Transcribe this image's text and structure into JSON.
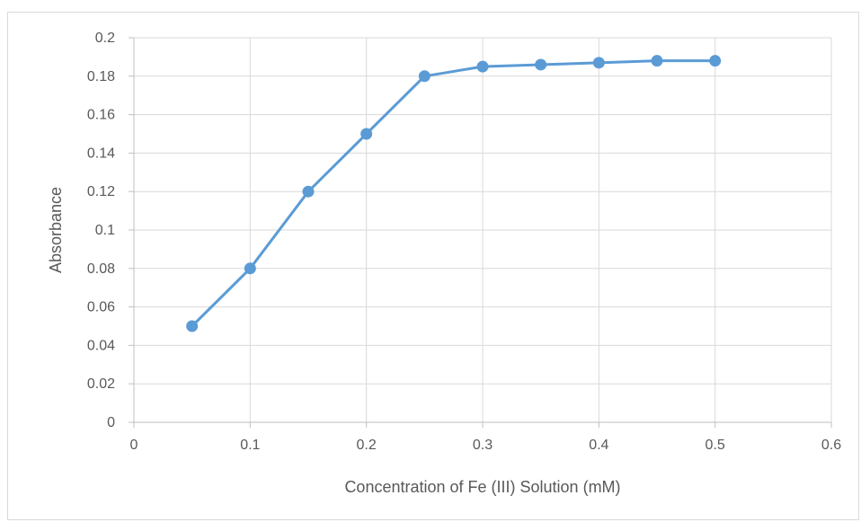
{
  "chart_data": {
    "type": "line",
    "title": "",
    "xlabel": "Concentration of Fe (III) Solution (mM)",
    "ylabel": "Absorbance",
    "xlim": [
      0,
      0.6
    ],
    "ylim": [
      0,
      0.2
    ],
    "xticks": [
      "0",
      "0.1",
      "0.2",
      "0.3",
      "0.4",
      "0.5",
      "0.6"
    ],
    "yticks": [
      "0",
      "0.02",
      "0.04",
      "0.06",
      "0.08",
      "0.1",
      "0.12",
      "0.14",
      "0.16",
      "0.18",
      "0.2"
    ],
    "grid": true,
    "legend": "none",
    "series": [
      {
        "color": "#5b9bd5",
        "x": [
          0.05,
          0.1,
          0.15,
          0.2,
          0.25,
          0.3,
          0.35,
          0.4,
          0.45,
          0.5
        ],
        "y": [
          0.05,
          0.08,
          0.12,
          0.15,
          0.18,
          0.185,
          0.186,
          0.187,
          0.188,
          0.188
        ]
      }
    ]
  }
}
